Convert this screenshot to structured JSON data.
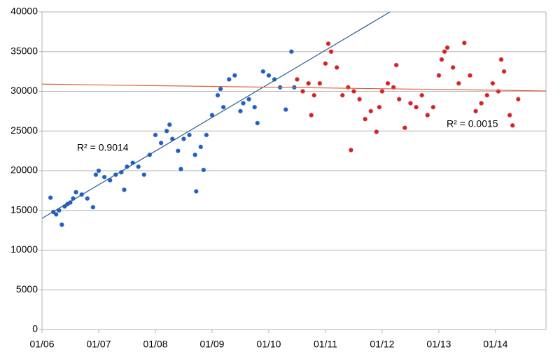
{
  "chart_data": {
    "type": "scatter",
    "xlim": [
      2006,
      2014.89
    ],
    "ylim": [
      0,
      40000
    ],
    "xticks": [
      {
        "value": 2006,
        "label": "01/06"
      },
      {
        "value": 2007,
        "label": "01/07"
      },
      {
        "value": 2008,
        "label": "01/08"
      },
      {
        "value": 2009,
        "label": "01/09"
      },
      {
        "value": 2010,
        "label": "01/10"
      },
      {
        "value": 2011,
        "label": "01/11"
      },
      {
        "value": 2012,
        "label": "01/12"
      },
      {
        "value": 2013,
        "label": "01/13"
      },
      {
        "value": 2014,
        "label": "01/14"
      }
    ],
    "yticks": [
      0,
      5000,
      10000,
      15000,
      20000,
      25000,
      30000,
      35000,
      40000
    ],
    "grid": true,
    "series": [
      {
        "color": "#1f5fc4",
        "trend_color": "#2a5d8f",
        "x": [
          2006.15,
          2006.2,
          2006.25,
          2006.3,
          2006.35,
          2006.4,
          2006.45,
          2006.5,
          2006.55,
          2006.6,
          2006.7,
          2006.8,
          2006.9,
          2006.95,
          2007.0,
          2007.1,
          2007.2,
          2007.3,
          2007.4,
          2007.45,
          2007.5,
          2007.6,
          2007.7,
          2007.8,
          2007.9,
          2008.0,
          2008.1,
          2008.2,
          2008.25,
          2008.3,
          2008.4,
          2008.45,
          2008.5,
          2008.6,
          2008.7,
          2008.72,
          2008.8,
          2008.85,
          2008.9,
          2009.0,
          2009.1,
          2009.15,
          2009.2,
          2009.3,
          2009.4,
          2009.5,
          2009.55,
          2009.65,
          2009.75,
          2009.8,
          2009.9,
          2010.0,
          2010.1,
          2010.2,
          2010.3,
          2010.4,
          2010.45
        ],
        "values": [
          16600,
          14800,
          14500,
          15000,
          13200,
          15500,
          15800,
          16000,
          16500,
          17300,
          17000,
          16500,
          15400,
          19500,
          20000,
          19200,
          18800,
          19500,
          19800,
          17600,
          20500,
          21000,
          20500,
          19500,
          22000,
          24500,
          23500,
          25000,
          25800,
          24000,
          22500,
          20200,
          24000,
          24500,
          22000,
          17400,
          23000,
          20100,
          24500,
          27000,
          29500,
          30300,
          28000,
          31500,
          32000,
          27500,
          28500,
          29000,
          28000,
          26000,
          32500,
          32000,
          31500,
          30500,
          27700,
          35000,
          30500
        ],
        "trendline": {
          "x": [
            2006,
            2012.14
          ],
          "values": [
            14000,
            40000
          ]
        },
        "r2_label": "R² = 0.9014"
      },
      {
        "color": "#d42323",
        "trend_color": "#e0603a",
        "x": [
          2010.5,
          2010.6,
          2010.7,
          2010.75,
          2010.8,
          2010.9,
          2011.0,
          2011.05,
          2011.1,
          2011.2,
          2011.3,
          2011.4,
          2011.45,
          2011.5,
          2011.6,
          2011.7,
          2011.8,
          2011.9,
          2011.95,
          2012.0,
          2012.1,
          2012.2,
          2012.25,
          2012.3,
          2012.4,
          2012.5,
          2012.6,
          2012.7,
          2012.8,
          2012.9,
          2013.0,
          2013.05,
          2013.1,
          2013.15,
          2013.25,
          2013.35,
          2013.45,
          2013.55,
          2013.65,
          2013.75,
          2013.85,
          2013.95,
          2014.05,
          2014.1,
          2014.15,
          2014.25,
          2014.3,
          2014.4
        ],
        "values": [
          31500,
          30000,
          31000,
          27000,
          29500,
          31000,
          33500,
          36000,
          35000,
          33000,
          29500,
          30500,
          22600,
          30000,
          29000,
          26500,
          27500,
          24900,
          28000,
          30000,
          31000,
          30500,
          33300,
          29000,
          25400,
          28500,
          28000,
          29500,
          27000,
          28000,
          32000,
          34000,
          35000,
          35500,
          33000,
          31000,
          36100,
          32000,
          27500,
          28500,
          29500,
          31000,
          30000,
          34000,
          32500,
          27000,
          25700,
          29000
        ],
        "trendline": {
          "x": [
            2006,
            2014.89
          ],
          "values": [
            30900,
            30050
          ]
        },
        "r2_label": "R² = 0.0015"
      }
    ]
  }
}
